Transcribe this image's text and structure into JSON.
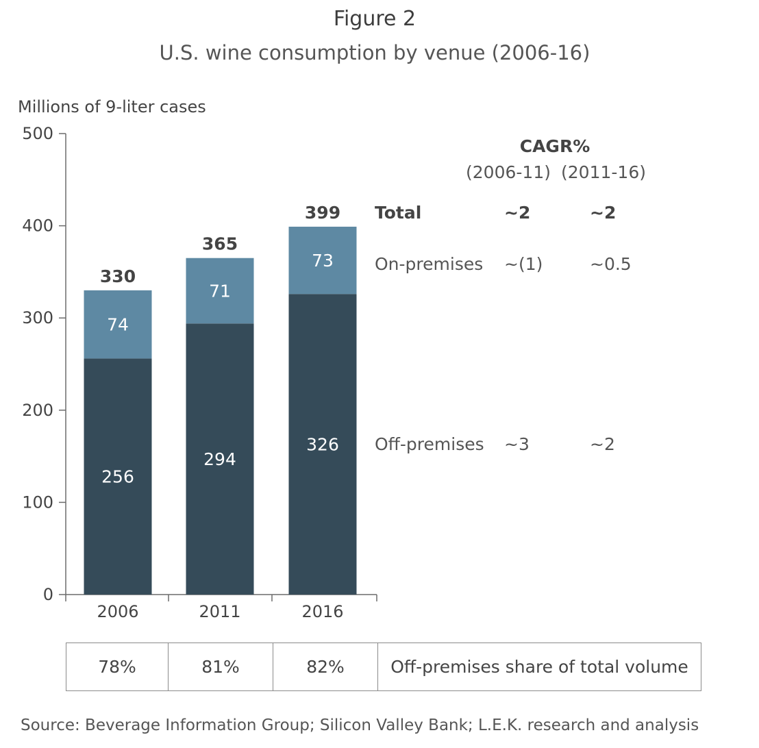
{
  "header": {
    "figure_label": "Figure 2",
    "title": "U.S. wine consumption by venue (2006-16)"
  },
  "chart_data": {
    "type": "bar",
    "stacked": true,
    "ylabel": "Millions of 9-liter cases",
    "ylim": [
      0,
      500
    ],
    "yticks": [
      "0",
      "100",
      "200",
      "300",
      "400",
      "500"
    ],
    "categories": [
      "2006",
      "2011",
      "2016"
    ],
    "series": [
      {
        "name": "Off-premises",
        "values": [
          256,
          294,
          326
        ],
        "labels": [
          "256",
          "294",
          "326"
        ],
        "color": "#354b59"
      },
      {
        "name": "On-premises",
        "values": [
          74,
          71,
          73
        ],
        "labels": [
          "74",
          "71",
          "73"
        ],
        "color": "#5e89a3"
      }
    ],
    "totals": [
      "330",
      "365",
      "399"
    ]
  },
  "cagr_table": {
    "title": "CAGR%",
    "col1": "(2006-11)",
    "col2": "(2011-16)",
    "rows": [
      {
        "label": "Total",
        "c1": "~2",
        "c2": "~2"
      },
      {
        "label": "On-premises",
        "c1": "~(1)",
        "c2": "~0.5"
      },
      {
        "label": "Off-premises",
        "c1": "~3",
        "c2": "~2"
      }
    ]
  },
  "share_row": {
    "values": [
      "78%",
      "81%",
      "82%"
    ],
    "label": "Off-premises share of total volume"
  },
  "source": "Source: Beverage Information Group; Silicon Valley Bank; L.E.K. research and analysis"
}
